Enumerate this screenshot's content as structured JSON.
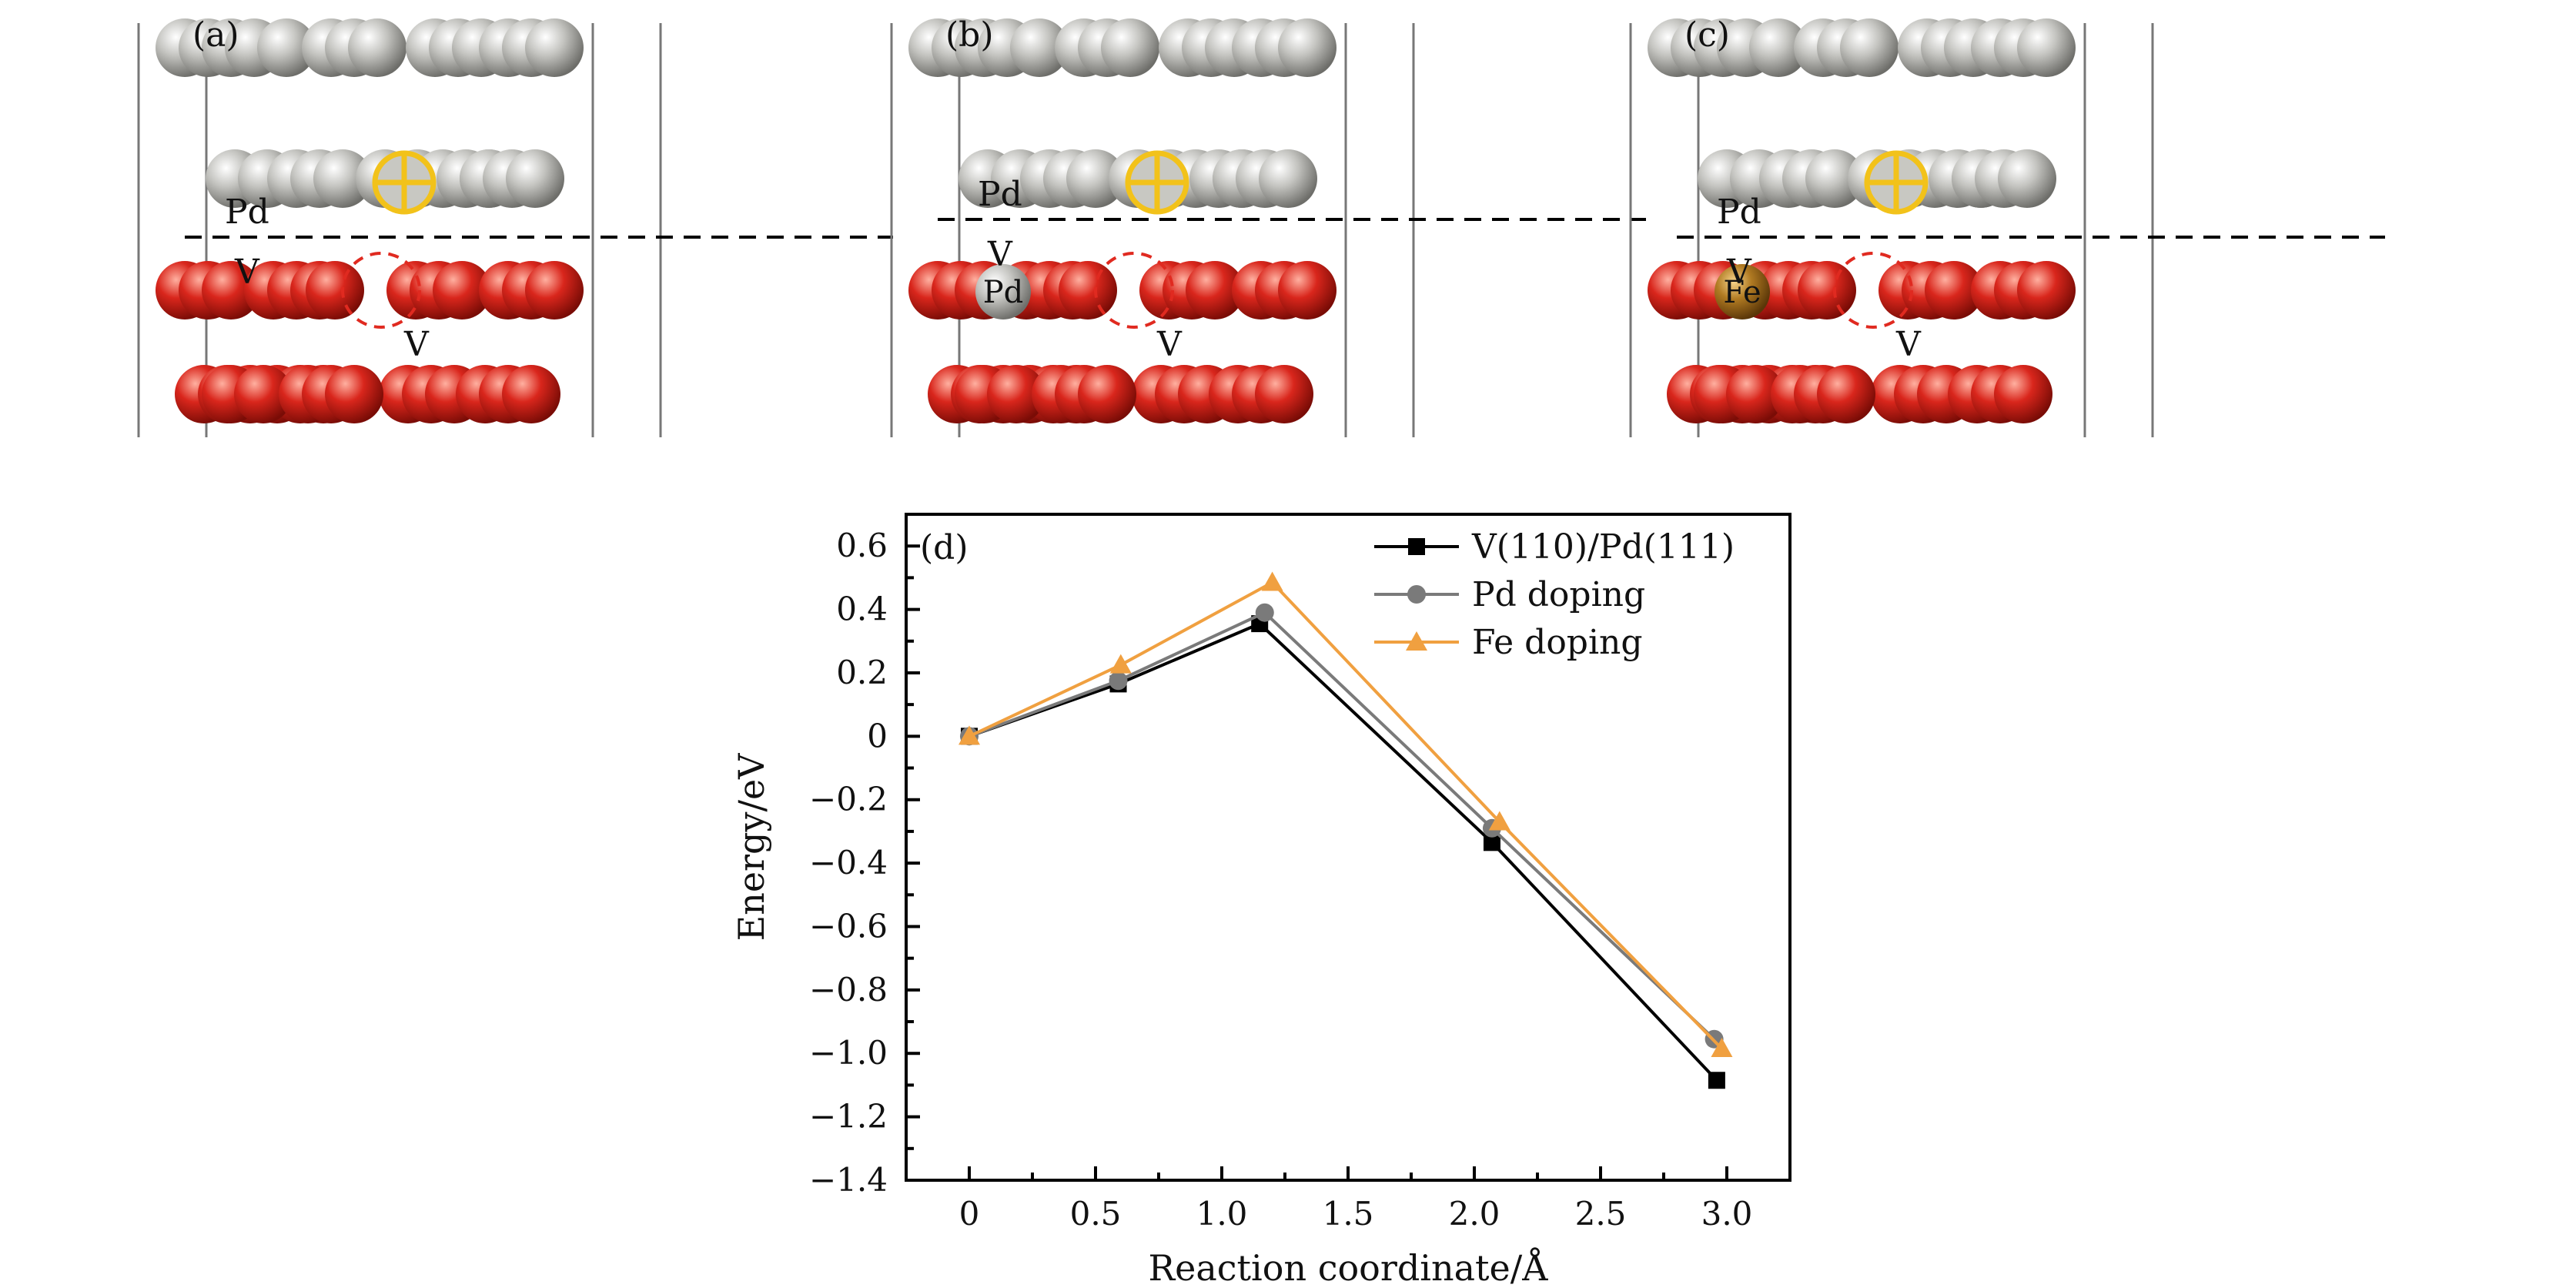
{
  "panels": [
    {
      "tag": "(a)",
      "top_label": "Pd",
      "bottom_label": "V",
      "vacancy_label": "V",
      "dopant": null
    },
    {
      "tag": "(b)",
      "top_label": "Pd",
      "bottom_label": "V",
      "vacancy_label": "V",
      "dopant": "Pd"
    },
    {
      "tag": "(c)",
      "top_label": "Pd",
      "bottom_label": "V",
      "vacancy_label": "V",
      "dopant": "Fe"
    }
  ],
  "colors": {
    "pd_atom": "#c4c4c0",
    "v_atom": "#d9261c",
    "fe_atom": "#b07a22",
    "marker_yellow": "#f2c21a",
    "vacancy_ring": "#e02a20"
  },
  "chart_data": {
    "type": "line",
    "panel_tag": "(d)",
    "xlabel": "Reaction coordinate/Å",
    "ylabel": "Energy/eV",
    "xlim": [
      -0.25,
      3.25
    ],
    "ylim": [
      -1.4,
      0.7
    ],
    "xticks": [
      0,
      0.5,
      1.0,
      1.5,
      2.0,
      2.5,
      3.0
    ],
    "xtick_labels": [
      "0",
      "0.5",
      "1.0",
      "1.5",
      "2.0",
      "2.5",
      "3.0"
    ],
    "yticks": [
      0.6,
      0.4,
      0.2,
      0,
      -0.2,
      -0.4,
      -0.6,
      -0.8,
      -1.0,
      -1.2,
      -1.4
    ],
    "ytick_labels": [
      "0.6",
      "0.4",
      "0.2",
      "0",
      "−0.2",
      "−0.4",
      "−0.6",
      "−0.8",
      "−1.0",
      "−1.2",
      "−1.4"
    ],
    "legend_position": "top-right",
    "series": [
      {
        "name": "V(110)/Pd(111)",
        "color": "#000000",
        "marker": "square",
        "x": [
          0,
          0.59,
          1.15,
          2.07,
          2.96
        ],
        "y": [
          0,
          0.165,
          0.355,
          -0.335,
          -1.085
        ]
      },
      {
        "name": "Pd doping",
        "color": "#7a7a7a",
        "marker": "circle",
        "x": [
          0,
          0.59,
          1.17,
          2.07,
          2.95
        ],
        "y": [
          0,
          0.175,
          0.39,
          -0.29,
          -0.955
        ]
      },
      {
        "name": "Fe doping",
        "color": "#f0a040",
        "marker": "triangle",
        "x": [
          0,
          0.6,
          1.2,
          2.1,
          2.98
        ],
        "y": [
          0,
          0.225,
          0.485,
          -0.27,
          -0.985
        ]
      }
    ]
  }
}
